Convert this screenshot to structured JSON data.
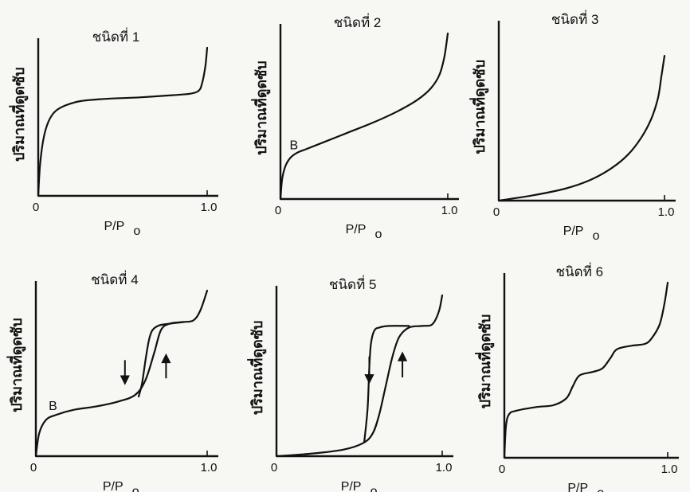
{
  "chart_data": [
    {
      "type": "line",
      "title": "ชนิดที่ 1",
      "ylabel": "ปริมาณที่ดูดซับ",
      "xlabel_main": "P/P",
      "xlabel_sub": "o",
      "xlim": [
        0,
        1.0
      ],
      "x_ticks": [
        "0",
        "1.0"
      ],
      "annotations": [],
      "arrows": [],
      "series": [
        {
          "x": [
            0,
            0.01,
            0.03,
            0.06,
            0.1,
            0.16,
            0.25,
            0.4,
            0.6,
            0.8,
            0.9,
            0.95,
            0.97,
            0.99,
            1.0
          ],
          "y": [
            0,
            0.2,
            0.38,
            0.5,
            0.57,
            0.61,
            0.64,
            0.655,
            0.665,
            0.68,
            0.69,
            0.71,
            0.76,
            0.88,
            1.0
          ]
        }
      ]
    },
    {
      "type": "line",
      "title": "ชนิดที่ 2",
      "ylabel": "ปริมาณที่ดูดซับ",
      "xlabel_main": "P/P",
      "xlabel_sub": "o",
      "xlim": [
        0,
        1.0
      ],
      "x_ticks": [
        "0",
        "1.0"
      ],
      "annotations": [
        {
          "text": "B",
          "x": 0.08,
          "y": 0.3
        }
      ],
      "arrows": [],
      "series": [
        {
          "x": [
            0,
            0.01,
            0.03,
            0.06,
            0.1,
            0.15,
            0.25,
            0.4,
            0.55,
            0.7,
            0.82,
            0.9,
            0.95,
            0.98,
            1.0
          ],
          "y": [
            0,
            0.12,
            0.2,
            0.25,
            0.28,
            0.3,
            0.34,
            0.4,
            0.46,
            0.53,
            0.6,
            0.67,
            0.75,
            0.86,
            1.0
          ]
        }
      ]
    },
    {
      "type": "line",
      "title": "ชนิดที่ 3",
      "ylabel": "ปริมาณที่ดูดซับ",
      "xlabel_main": "P/P",
      "xlabel_sub": "o",
      "xlim": [
        0,
        1.0
      ],
      "x_ticks": [
        "0",
        "1.0"
      ],
      "annotations": [],
      "arrows": [],
      "series": [
        {
          "x": [
            0,
            0.2,
            0.4,
            0.55,
            0.68,
            0.78,
            0.86,
            0.92,
            0.96,
            0.98,
            1.0
          ],
          "y": [
            0,
            0.03,
            0.07,
            0.12,
            0.19,
            0.27,
            0.37,
            0.48,
            0.6,
            0.72,
            0.85
          ]
        }
      ]
    },
    {
      "type": "line",
      "title": "ชนิดที่ 4",
      "ylabel": "ปริมาณที่ดูดซับ",
      "xlabel_main": "P/P",
      "xlabel_sub": "o",
      "xlim": [
        0,
        1.0
      ],
      "x_ticks": [
        "0",
        "1.0"
      ],
      "annotations": [
        {
          "text": "B",
          "x": 0.1,
          "y": 0.28
        }
      ],
      "arrows": [
        {
          "direction": "down",
          "x": 0.52,
          "y_from": 0.58,
          "y_to": 0.44
        },
        {
          "direction": "up",
          "x": 0.76,
          "y_from": 0.47,
          "y_to": 0.61
        }
      ],
      "series": [
        {
          "name": "",
          "x": [
            0,
            0.02,
            0.06,
            0.12,
            0.22,
            0.35,
            0.48,
            0.58,
            0.64,
            0.69,
            0.73,
            0.78,
            0.86,
            0.92,
            0.96,
            1.0
          ],
          "y": [
            0,
            0.14,
            0.22,
            0.25,
            0.28,
            0.3,
            0.33,
            0.37,
            0.46,
            0.62,
            0.76,
            0.8,
            0.81,
            0.82,
            0.88,
            1.0
          ]
        },
        {
          "name": "",
          "x": [
            0.6,
            0.62,
            0.64,
            0.66,
            0.68,
            0.72,
            0.78,
            0.86
          ],
          "y": [
            0.36,
            0.44,
            0.58,
            0.7,
            0.76,
            0.79,
            0.8,
            0.81
          ]
        }
      ]
    },
    {
      "type": "line",
      "title": "ชนิดที่ 5",
      "ylabel": "ปริมาณที่ดูดซับ",
      "xlabel_main": "P/P",
      "xlabel_sub": "o",
      "xlim": [
        0,
        1.0
      ],
      "x_ticks": [
        "0",
        "1.0"
      ],
      "annotations": [],
      "arrows": [
        {
          "direction": "down",
          "x": 0.56,
          "y_from": 0.62,
          "y_to": 0.46
        },
        {
          "direction": "up",
          "x": 0.76,
          "y_from": 0.49,
          "y_to": 0.64
        }
      ],
      "series": [
        {
          "name": "",
          "x": [
            0,
            0.2,
            0.4,
            0.52,
            0.58,
            0.62,
            0.66,
            0.7,
            0.74,
            0.8,
            0.88,
            0.94,
            0.98,
            1.0
          ],
          "y": [
            0,
            0.015,
            0.04,
            0.08,
            0.14,
            0.26,
            0.44,
            0.62,
            0.74,
            0.8,
            0.81,
            0.82,
            0.9,
            1.0
          ]
        },
        {
          "name": "",
          "x": [
            0.53,
            0.55,
            0.56,
            0.57,
            0.59,
            0.62,
            0.68,
            0.8
          ],
          "y": [
            0.09,
            0.3,
            0.55,
            0.7,
            0.78,
            0.8,
            0.81,
            0.81
          ]
        }
      ]
    },
    {
      "type": "line",
      "title": "ชนิดที่ 6",
      "ylabel": "ปริมาณที่ดูดซับ",
      "xlabel_main": "P/P",
      "xlabel_sub": "o",
      "xlim": [
        0,
        1.0
      ],
      "x_ticks": [
        "0",
        "1.0"
      ],
      "annotations": [],
      "arrows": [],
      "series": [
        {
          "x": [
            0,
            0.01,
            0.03,
            0.08,
            0.2,
            0.3,
            0.38,
            0.42,
            0.46,
            0.54,
            0.6,
            0.65,
            0.69,
            0.78,
            0.86,
            0.9,
            0.95,
            0.98,
            1.0
          ],
          "y": [
            0,
            0.18,
            0.25,
            0.27,
            0.29,
            0.3,
            0.34,
            0.41,
            0.47,
            0.49,
            0.51,
            0.57,
            0.62,
            0.64,
            0.65,
            0.68,
            0.76,
            0.88,
            1.0
          ]
        }
      ]
    }
  ]
}
